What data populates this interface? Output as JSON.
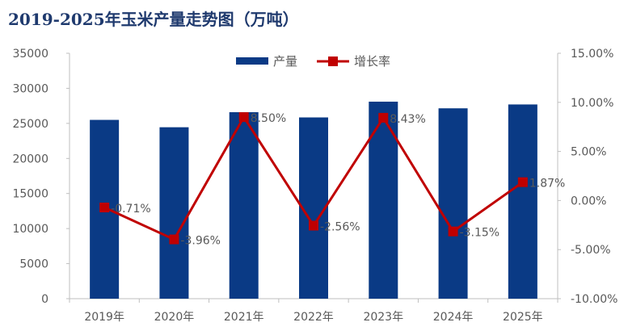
{
  "title": "2019-2025年玉米产量走势图（万吨）",
  "chart_data": {
    "type": "bar",
    "categories": [
      "2019年",
      "2020年",
      "2021年",
      "2022年",
      "2023年",
      "2024年",
      "2025年"
    ],
    "series": [
      {
        "name": "产量",
        "type": "bar",
        "axis": "left",
        "color": "#0a3a85",
        "values": [
          25500,
          24450,
          26600,
          25850,
          28100,
          27150,
          27700
        ]
      },
      {
        "name": "增长率",
        "type": "line",
        "axis": "right",
        "color": "#c00000",
        "values": [
          -0.71,
          -3.96,
          8.5,
          -2.56,
          8.43,
          -3.15,
          1.87
        ],
        "labels": [
          "-0.71%",
          "-3.96%",
          "8.50%",
          "-2.56%",
          "8.43%",
          "-3.15%",
          "1.87%"
        ]
      }
    ],
    "left_axis": {
      "min": 0,
      "max": 35000,
      "ticks": [
        "0",
        "5000",
        "10000",
        "15000",
        "20000",
        "25000",
        "30000",
        "35000"
      ]
    },
    "right_axis": {
      "min": -10,
      "max": 15,
      "ticks": [
        "-10.00%",
        "-5.00%",
        "0.00%",
        "5.00%",
        "10.00%",
        "15.00%"
      ]
    },
    "legend_position": "top",
    "grid": false
  }
}
